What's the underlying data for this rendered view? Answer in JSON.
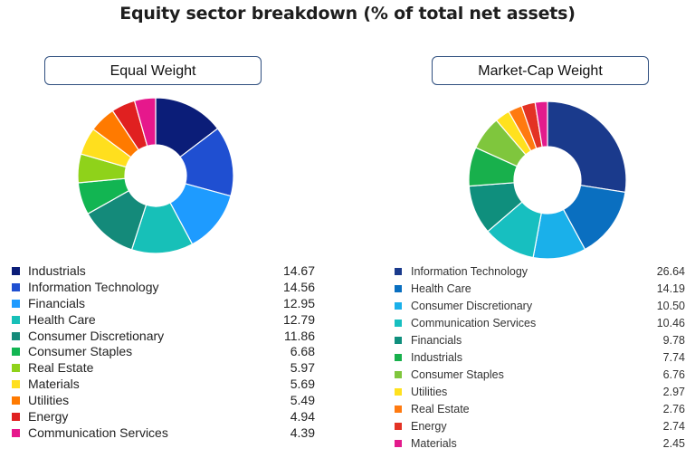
{
  "title": "Equity sector breakdown (% of total net assets)",
  "chart_data": [
    {
      "type": "pie",
      "donut": true,
      "title": "Equal Weight",
      "categories": [
        "Industrials",
        "Information Technology",
        "Financials",
        "Health Care",
        "Consumer Discretionary",
        "Consumer Staples",
        "Real Estate",
        "Materials",
        "Utilities",
        "Energy",
        "Communication Services"
      ],
      "values": [
        14.67,
        14.56,
        12.95,
        12.79,
        11.86,
        6.68,
        5.97,
        5.69,
        5.49,
        4.94,
        4.39
      ],
      "value_labels": [
        "14.67",
        "14.56",
        "12.95",
        "12.79",
        "11.86",
        "6.68",
        "5.97",
        "5.69",
        "5.49",
        "4.94",
        "4.39"
      ],
      "colors": [
        "#0b1d78",
        "#1f4fd1",
        "#1e9bff",
        "#17c0b8",
        "#148a7a",
        "#12b552",
        "#8fd21a",
        "#ffdf1e",
        "#ff7a00",
        "#e02020",
        "#e6188c"
      ]
    },
    {
      "type": "pie",
      "donut": true,
      "title": "Market-Cap Weight",
      "categories": [
        "Information Technology",
        "Health Care",
        "Consumer Discretionary",
        "Communication Services",
        "Financials",
        "Industrials",
        "Consumer Staples",
        "Utilities",
        "Real Estate",
        "Energy",
        "Materials"
      ],
      "values": [
        26.64,
        14.19,
        10.5,
        10.46,
        9.78,
        7.74,
        6.76,
        2.97,
        2.76,
        2.74,
        2.45
      ],
      "value_labels": [
        "26.64",
        "14.19",
        "10.50",
        "10.46",
        "9.78",
        "7.74",
        "6.76",
        "2.97",
        "2.76",
        "2.74",
        "2.45"
      ],
      "colors": [
        "#1a3a8c",
        "#0a6fc0",
        "#1ab0ea",
        "#17bfc0",
        "#0f8f7d",
        "#18b04c",
        "#7fc63d",
        "#ffe11e",
        "#ff7a10",
        "#e33224",
        "#e31b8c"
      ]
    }
  ]
}
